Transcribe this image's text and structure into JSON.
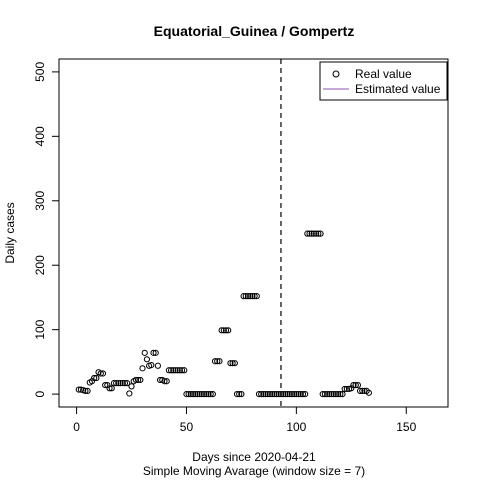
{
  "chart_data": {
    "type": "scatter",
    "title": "Equatorial_Guinea / Gompertz",
    "xlabel": "Days since 2020-04-21",
    "subtitle": "Simple Moving Avarage (window size = 7)",
    "ylabel": "Daily cases",
    "xlim": [
      -8,
      169
    ],
    "ylim": [
      -20,
      520
    ],
    "x_ticks": [
      0,
      50,
      100,
      150
    ],
    "y_ticks": [
      0,
      100,
      200,
      300,
      400,
      500
    ],
    "grid": false,
    "legend_position": "top-right",
    "vline_x": 93,
    "colors": {
      "real": "#000000",
      "estimated": "#8b4fb0"
    },
    "legend": [
      "Real value",
      "Estimated value"
    ],
    "series": [
      {
        "name": "Real value",
        "marker": "open-circle",
        "points": [
          [
            1,
            7
          ],
          [
            2,
            7
          ],
          [
            3,
            6
          ],
          [
            4,
            5
          ],
          [
            5,
            5
          ],
          [
            6,
            18
          ],
          [
            7,
            20
          ],
          [
            8,
            25
          ],
          [
            9,
            25
          ],
          [
            10,
            34
          ],
          [
            11,
            32
          ],
          [
            12,
            32
          ],
          [
            13,
            14
          ],
          [
            14,
            14
          ],
          [
            15,
            9
          ],
          [
            16,
            9
          ],
          [
            17,
            17
          ],
          [
            18,
            17
          ],
          [
            19,
            17
          ],
          [
            20,
            17
          ],
          [
            21,
            17
          ],
          [
            22,
            17
          ],
          [
            23,
            17
          ],
          [
            24,
            1
          ],
          [
            25,
            12
          ],
          [
            26,
            20
          ],
          [
            27,
            22
          ],
          [
            28,
            22
          ],
          [
            29,
            22
          ],
          [
            30,
            40
          ],
          [
            31,
            64
          ],
          [
            32,
            54
          ],
          [
            33,
            44
          ],
          [
            34,
            45
          ],
          [
            35,
            64
          ],
          [
            36,
            64
          ],
          [
            37,
            44
          ],
          [
            38,
            22
          ],
          [
            39,
            22
          ],
          [
            40,
            20
          ],
          [
            41,
            20
          ],
          [
            42,
            37
          ],
          [
            43,
            37
          ],
          [
            44,
            37
          ],
          [
            45,
            37
          ],
          [
            46,
            37
          ],
          [
            47,
            37
          ],
          [
            48,
            37
          ],
          [
            49,
            37
          ],
          [
            50,
            0
          ],
          [
            51,
            0
          ],
          [
            52,
            0
          ],
          [
            53,
            0
          ],
          [
            54,
            0
          ],
          [
            55,
            0
          ],
          [
            56,
            0
          ],
          [
            57,
            0
          ],
          [
            58,
            0
          ],
          [
            59,
            0
          ],
          [
            60,
            0
          ],
          [
            61,
            0
          ],
          [
            62,
            0
          ],
          [
            63,
            51
          ],
          [
            64,
            51
          ],
          [
            65,
            51
          ],
          [
            66,
            99
          ],
          [
            67,
            99
          ],
          [
            68,
            99
          ],
          [
            69,
            99
          ],
          [
            70,
            48
          ],
          [
            71,
            48
          ],
          [
            72,
            48
          ],
          [
            73,
            0
          ],
          [
            74,
            0
          ],
          [
            75,
            0
          ],
          [
            76,
            152
          ],
          [
            77,
            152
          ],
          [
            78,
            152
          ],
          [
            79,
            152
          ],
          [
            80,
            152
          ],
          [
            81,
            152
          ],
          [
            82,
            152
          ],
          [
            83,
            0
          ],
          [
            84,
            0
          ],
          [
            85,
            0
          ],
          [
            86,
            0
          ],
          [
            87,
            0
          ],
          [
            88,
            0
          ],
          [
            89,
            0
          ],
          [
            90,
            0
          ],
          [
            91,
            0
          ],
          [
            92,
            0
          ],
          [
            93,
            0
          ],
          [
            94,
            0
          ],
          [
            95,
            0
          ],
          [
            96,
            0
          ],
          [
            97,
            0
          ],
          [
            98,
            0
          ],
          [
            99,
            0
          ],
          [
            100,
            0
          ],
          [
            101,
            0
          ],
          [
            102,
            0
          ],
          [
            103,
            0
          ],
          [
            104,
            0
          ],
          [
            105,
            249
          ],
          [
            106,
            249
          ],
          [
            107,
            249
          ],
          [
            108,
            249
          ],
          [
            109,
            249
          ],
          [
            110,
            249
          ],
          [
            111,
            249
          ],
          [
            112,
            0
          ],
          [
            113,
            0
          ],
          [
            114,
            0
          ],
          [
            115,
            0
          ],
          [
            116,
            0
          ],
          [
            117,
            0
          ],
          [
            118,
            0
          ],
          [
            119,
            0
          ],
          [
            120,
            0
          ],
          [
            121,
            0
          ],
          [
            122,
            8
          ],
          [
            123,
            8
          ],
          [
            124,
            8
          ],
          [
            125,
            9
          ],
          [
            126,
            14
          ],
          [
            127,
            14
          ],
          [
            128,
            14
          ],
          [
            129,
            5
          ],
          [
            130,
            5
          ],
          [
            131,
            5
          ],
          [
            132,
            5
          ],
          [
            133,
            2
          ]
        ]
      }
    ]
  }
}
